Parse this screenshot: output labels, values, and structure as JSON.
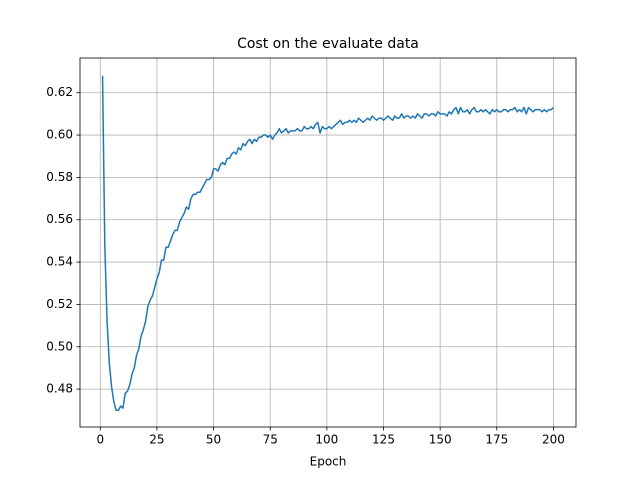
{
  "chart_data": {
    "type": "line",
    "title": "Cost on the evaluate data",
    "xlabel": "Epoch",
    "x": [
      1,
      2,
      3,
      4,
      5,
      6,
      7,
      8,
      9,
      10,
      11,
      12,
      13,
      14,
      15,
      16,
      17,
      18,
      19,
      20,
      21,
      22,
      23,
      24,
      25,
      26,
      27,
      28,
      29,
      30,
      31,
      32,
      33,
      34,
      35,
      36,
      37,
      38,
      39,
      40,
      41,
      42,
      43,
      44,
      45,
      46,
      47,
      48,
      49,
      50,
      51,
      52,
      53,
      54,
      55,
      56,
      57,
      58,
      59,
      60,
      61,
      62,
      63,
      64,
      65,
      66,
      67,
      68,
      69,
      70,
      71,
      72,
      73,
      74,
      75,
      76,
      77,
      78,
      79,
      80,
      81,
      82,
      83,
      84,
      85,
      86,
      87,
      88,
      89,
      90,
      91,
      92,
      93,
      94,
      95,
      96,
      97,
      98,
      99,
      100,
      101,
      102,
      103,
      104,
      105,
      106,
      107,
      108,
      109,
      110,
      111,
      112,
      113,
      114,
      115,
      116,
      117,
      118,
      119,
      120,
      121,
      122,
      123,
      124,
      125,
      126,
      127,
      128,
      129,
      130,
      131,
      132,
      133,
      134,
      135,
      136,
      137,
      138,
      139,
      140,
      141,
      142,
      143,
      144,
      145,
      146,
      147,
      148,
      149,
      150,
      151,
      152,
      153,
      154,
      155,
      156,
      157,
      158,
      159,
      160,
      161,
      162,
      163,
      164,
      165,
      166,
      167,
      168,
      169,
      170,
      171,
      172,
      173,
      174,
      175,
      176,
      177,
      178,
      179,
      180,
      181,
      182,
      183,
      184,
      185,
      186,
      187,
      188,
      189,
      190,
      191,
      192,
      193,
      194,
      195,
      196,
      197,
      198,
      199,
      200
    ],
    "series": [
      {
        "color": "#1f77b4",
        "values": [
          0.628,
          0.548,
          0.512,
          0.492,
          0.481,
          0.474,
          0.47,
          0.47,
          0.472,
          0.471,
          0.478,
          0.479,
          0.482,
          0.487,
          0.49,
          0.496,
          0.499,
          0.505,
          0.508,
          0.512,
          0.519,
          0.522,
          0.524,
          0.528,
          0.532,
          0.535,
          0.541,
          0.541,
          0.547,
          0.547,
          0.55,
          0.553,
          0.555,
          0.555,
          0.559,
          0.561,
          0.563,
          0.566,
          0.565,
          0.57,
          0.572,
          0.572,
          0.573,
          0.573,
          0.575,
          0.577,
          0.579,
          0.579,
          0.58,
          0.584,
          0.584,
          0.583,
          0.586,
          0.587,
          0.586,
          0.589,
          0.589,
          0.591,
          0.592,
          0.591,
          0.594,
          0.593,
          0.596,
          0.595,
          0.597,
          0.598,
          0.596,
          0.598,
          0.597,
          0.599,
          0.599,
          0.6,
          0.6,
          0.599,
          0.6,
          0.598,
          0.6,
          0.601,
          0.603,
          0.601,
          0.602,
          0.603,
          0.601,
          0.602,
          0.602,
          0.602,
          0.603,
          0.602,
          0.602,
          0.604,
          0.603,
          0.603,
          0.604,
          0.603,
          0.605,
          0.606,
          0.601,
          0.604,
          0.603,
          0.603,
          0.604,
          0.603,
          0.604,
          0.605,
          0.606,
          0.607,
          0.605,
          0.606,
          0.606,
          0.607,
          0.606,
          0.607,
          0.606,
          0.608,
          0.607,
          0.606,
          0.607,
          0.608,
          0.607,
          0.609,
          0.608,
          0.607,
          0.608,
          0.608,
          0.607,
          0.608,
          0.609,
          0.608,
          0.607,
          0.609,
          0.608,
          0.608,
          0.61,
          0.608,
          0.609,
          0.609,
          0.608,
          0.609,
          0.608,
          0.61,
          0.609,
          0.608,
          0.61,
          0.61,
          0.609,
          0.61,
          0.61,
          0.609,
          0.611,
          0.61,
          0.61,
          0.61,
          0.609,
          0.611,
          0.61,
          0.612,
          0.613,
          0.61,
          0.613,
          0.611,
          0.611,
          0.612,
          0.61,
          0.612,
          0.613,
          0.611,
          0.611,
          0.612,
          0.611,
          0.612,
          0.611,
          0.61,
          0.612,
          0.611,
          0.612,
          0.611,
          0.611,
          0.612,
          0.612,
          0.611,
          0.612,
          0.612,
          0.613,
          0.611,
          0.612,
          0.611,
          0.613,
          0.61,
          0.613,
          0.612,
          0.611,
          0.612,
          0.612,
          0.612,
          0.611,
          0.612,
          0.611,
          0.612,
          0.612,
          0.613
        ]
      }
    ],
    "xlim": [
      -8.95,
      209.95
    ],
    "ylim": [
      0.4621,
      0.6364
    ],
    "xticks": [
      0,
      25,
      50,
      75,
      100,
      125,
      150,
      175,
      200
    ],
    "yticks": [
      0.48,
      {
        "value": 0.5,
        "label": "0.50"
      },
      0.52,
      0.54,
      0.56,
      0.58,
      {
        "value": 0.6,
        "label": "0.60"
      },
      0.62
    ],
    "grid": true
  }
}
